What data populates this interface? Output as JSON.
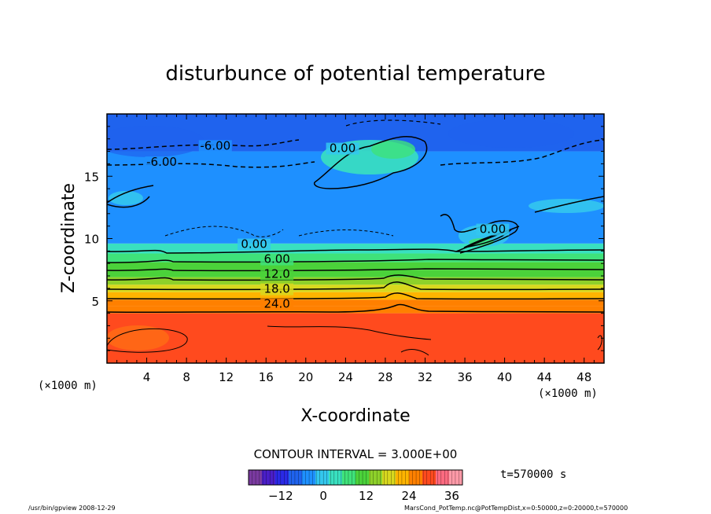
{
  "chart_data": {
    "type": "heatmap",
    "title": "disturbunce of potential temperature",
    "xlabel": "X-coordinate",
    "ylabel": "Z-coordinate",
    "x_unit_left": "(×1000 m)",
    "x_unit_right": "(×1000 m)",
    "xlim": [
      0,
      50
    ],
    "ylim": [
      0,
      20
    ],
    "x_ticks": [
      4,
      8,
      12,
      16,
      20,
      24,
      28,
      32,
      36,
      40,
      44,
      48
    ],
    "y_ticks": [
      5,
      10,
      15
    ],
    "contour_interval_text": "CONTOUR INTERVAL = 3.000E+00",
    "time_text": "t=570000 s",
    "colorbar": {
      "range": [
        -21,
        39
      ],
      "ticks": [
        -12,
        0,
        12,
        24,
        36
      ],
      "colors": [
        "#7a3aa0",
        "#4a1ec8",
        "#2a2ae6",
        "#1f63ee",
        "#1e90ff",
        "#33c7ee",
        "#39e0c0",
        "#3fe27a",
        "#4bd23a",
        "#8ed12a",
        "#d8d81e",
        "#ffb400",
        "#ff8000",
        "#ff4a1e",
        "#ff6a80",
        "#ff9aa8"
      ]
    },
    "layers": [
      {
        "z_range": [
          0,
          4
        ],
        "value": 30
      },
      {
        "z_range": [
          4,
          4.6
        ],
        "value": 27
      },
      {
        "z_range": [
          4.6,
          5.1
        ],
        "value": 24
      },
      {
        "z_range": [
          5.1,
          5.7
        ],
        "value": 21
      },
      {
        "z_range": [
          5.7,
          6.3
        ],
        "value": 18
      },
      {
        "z_range": [
          6.3,
          6.9
        ],
        "value": 15
      },
      {
        "z_range": [
          6.9,
          7.5
        ],
        "value": 12
      },
      {
        "z_range": [
          7.5,
          8.1
        ],
        "value": 9
      },
      {
        "z_range": [
          8.1,
          8.8
        ],
        "value": 6
      },
      {
        "z_range": [
          8.8,
          9.6
        ],
        "value": 3
      },
      {
        "z_range": [
          9.6,
          17
        ],
        "value": -3
      },
      {
        "z_range": [
          17,
          20
        ],
        "value": -9
      }
    ],
    "contour_labels": [
      {
        "text": "-6.00",
        "x": 10.9,
        "z": 17.2
      },
      {
        "text": "-6.00",
        "x": 5.5,
        "z": 15.9
      },
      {
        "text": "0.00",
        "x": 23.7,
        "z": 17
      },
      {
        "text": "0.00",
        "x": 14.8,
        "z": 9.3
      },
      {
        "text": "0.00",
        "x": 38.8,
        "z": 10.5
      },
      {
        "text": "6.00",
        "x": 17.1,
        "z": 8.1
      },
      {
        "text": "12.0",
        "x": 17.1,
        "z": 6.9
      },
      {
        "text": "18.0",
        "x": 17.1,
        "z": 5.7
      },
      {
        "text": "24.0",
        "x": 17.1,
        "z": 4.5
      }
    ]
  },
  "footer": {
    "left": "/usr/bin/gpview   2008-12-29",
    "right": "MarsCond_PotTemp.nc@PotTempDist,x=0:50000,z=0:20000,t=570000"
  }
}
